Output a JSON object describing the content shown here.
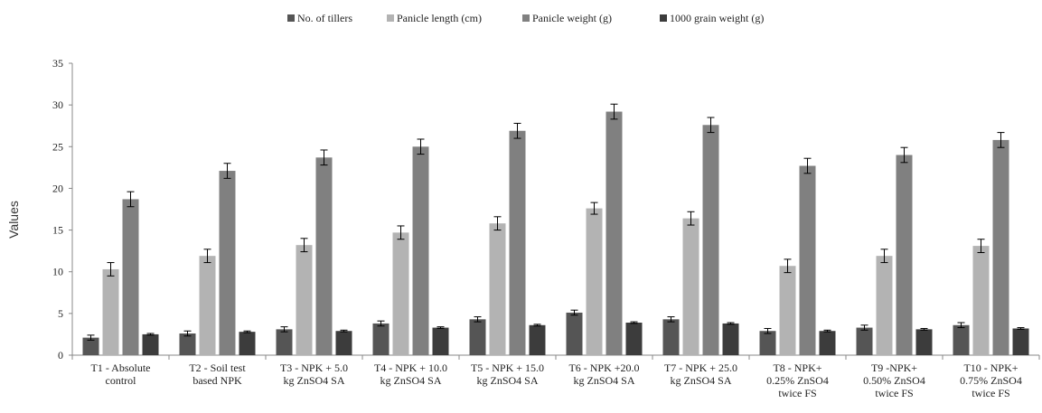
{
  "chart_data": {
    "type": "bar",
    "title": "",
    "xlabel": "",
    "ylabel": "Values",
    "ylim": [
      0,
      35
    ],
    "yticks": [
      0,
      5,
      10,
      15,
      20,
      25,
      30,
      35
    ],
    "grid": false,
    "legend_position": "top",
    "error_bars": true,
    "categories": [
      [
        "T1 - Absolute",
        "control"
      ],
      [
        "T2 - Soil test",
        "based NPK"
      ],
      [
        "T3 - NPK + 5.0",
        "kg ZnSO4 SA"
      ],
      [
        "T4 - NPK + 10.0",
        "kg ZnSO4 SA"
      ],
      [
        "T5 - NPK +  15.0",
        "kg ZnSO4 SA"
      ],
      [
        "T6 - NPK +20.0",
        "kg ZnSO4  SA"
      ],
      [
        "T7 - NPK +  25.0",
        "kg ZnSO4 SA"
      ],
      [
        "T8 - NPK+",
        "0.25% ZnSO4",
        "twice FS"
      ],
      [
        "T9 -NPK+",
        "0.50% ZnSO4",
        "twice  FS"
      ],
      [
        "T10 - NPK+",
        "0.75% ZnSO4",
        "twice FS"
      ]
    ],
    "series": [
      {
        "name": "No. of tillers",
        "color": "#555555",
        "values": [
          2.1,
          2.6,
          3.1,
          3.8,
          4.3,
          5.1,
          4.3,
          2.9,
          3.3,
          3.6
        ],
        "errors": [
          0.3,
          0.3,
          0.3,
          0.3,
          0.3,
          0.3,
          0.3,
          0.3,
          0.3,
          0.3
        ]
      },
      {
        "name": "Panicle length (cm)",
        "color": "#b3b3b3",
        "values": [
          10.3,
          11.9,
          13.2,
          14.7,
          15.8,
          17.6,
          16.4,
          10.7,
          11.9,
          13.1
        ],
        "errors": [
          0.8,
          0.8,
          0.8,
          0.8,
          0.8,
          0.7,
          0.8,
          0.8,
          0.8,
          0.8
        ]
      },
      {
        "name": "Panicle weight (g)",
        "color": "#808080",
        "values": [
          18.7,
          22.1,
          23.7,
          25.0,
          26.9,
          29.2,
          27.6,
          22.7,
          24.0,
          25.8
        ],
        "errors": [
          0.9,
          0.9,
          0.9,
          0.9,
          0.9,
          0.9,
          0.9,
          0.9,
          0.9,
          0.9
        ]
      },
      {
        "name": "1000 grain weight (g)",
        "color": "#3c3c3c",
        "values": [
          2.5,
          2.8,
          2.9,
          3.3,
          3.6,
          3.9,
          3.8,
          2.9,
          3.1,
          3.2
        ],
        "errors": [
          0.1,
          0.1,
          0.1,
          0.1,
          0.1,
          0.1,
          0.1,
          0.1,
          0.1,
          0.1
        ]
      }
    ]
  }
}
